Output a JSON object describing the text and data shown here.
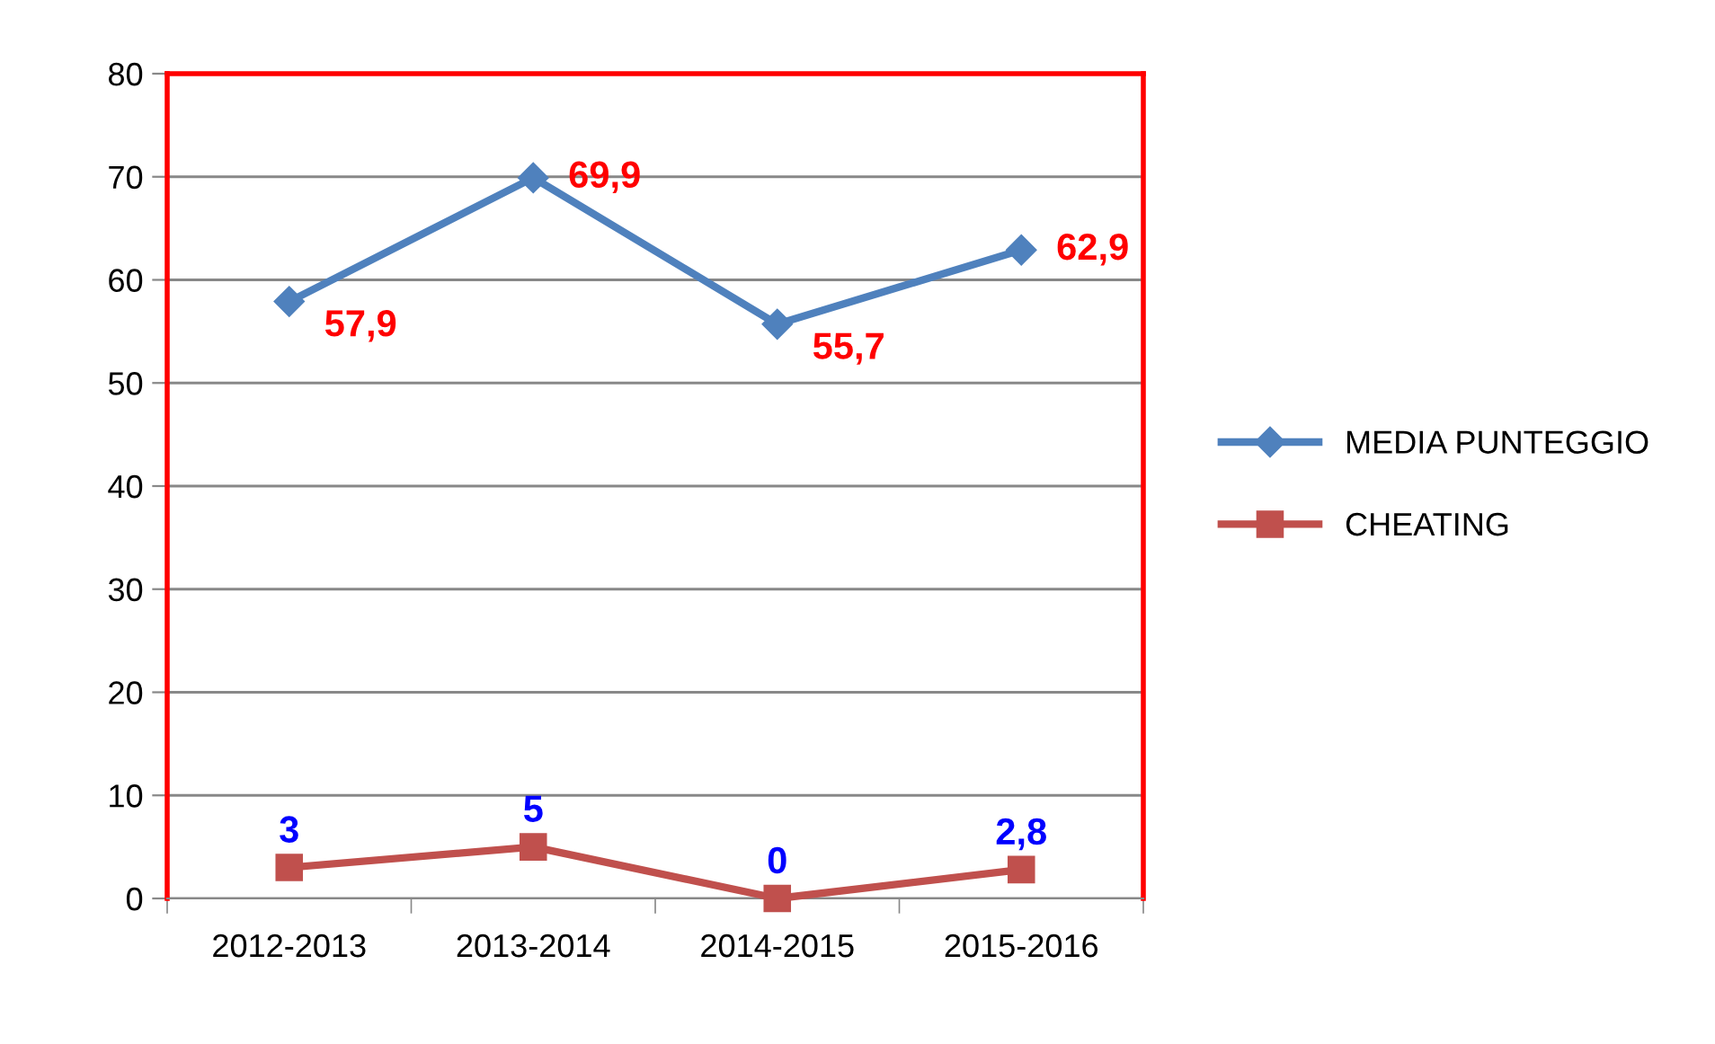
{
  "chart_data": {
    "type": "line",
    "categories": [
      "2012-2013",
      "2013-2014",
      "2014-2015",
      "2015-2016"
    ],
    "series": [
      {
        "name": "MEDIA PUNTEGGIO",
        "color": "#4f81bd",
        "marker": "diamond",
        "values": [
          57.9,
          69.9,
          55.7,
          62.9
        ],
        "value_labels": [
          "57,9",
          "69,9",
          "55,7",
          "62,9"
        ]
      },
      {
        "name": "CHEATING",
        "color": "#c0504d",
        "marker": "square",
        "values": [
          3,
          5,
          0,
          2.8
        ],
        "value_labels": [
          "3",
          "5",
          "0",
          "2,8"
        ]
      }
    ],
    "ylim": [
      0,
      80
    ],
    "yticks": [
      0,
      10,
      20,
      30,
      40,
      50,
      60,
      70,
      80
    ],
    "grid": "y",
    "legend": "right",
    "line_style": "solid"
  }
}
